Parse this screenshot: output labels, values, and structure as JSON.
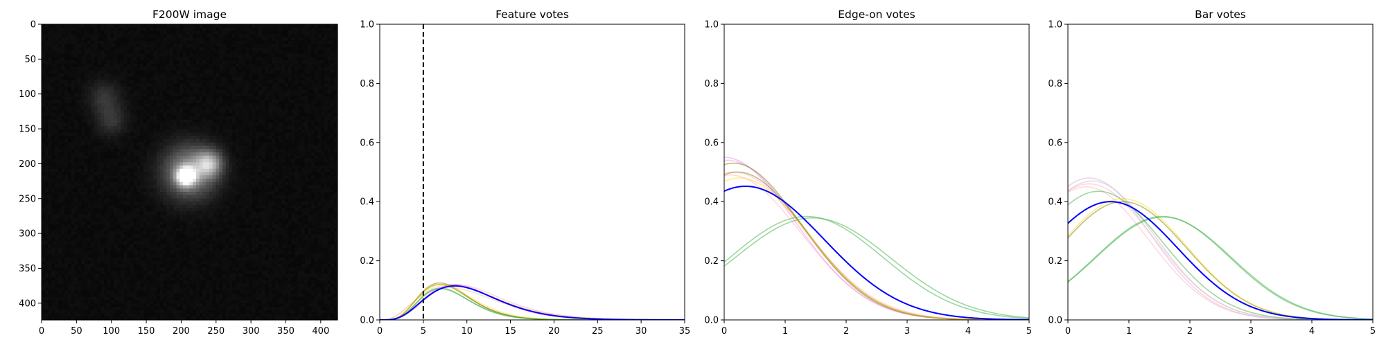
{
  "chart_data": [
    {
      "type": "image",
      "title": "F200W image",
      "xticks": [
        0,
        50,
        100,
        150,
        200,
        250,
        300,
        350,
        400
      ],
      "yticks": [
        0,
        50,
        100,
        150,
        200,
        250,
        300,
        350,
        400
      ],
      "extent": [
        0,
        424
      ],
      "colormap": "gray",
      "sources": [
        {
          "name": "bright compact core",
          "x": 207,
          "y": 218,
          "peak": 1.0,
          "sigma": 9
        },
        {
          "name": "core halo",
          "x": 212,
          "y": 212,
          "peak": 0.55,
          "sigma": 26
        },
        {
          "name": "companion knot",
          "x": 240,
          "y": 200,
          "peak": 0.55,
          "sigma": 13
        },
        {
          "name": "faint upper blob",
          "x": 90,
          "y": 105,
          "peak": 0.17,
          "sigma": 16
        },
        {
          "name": "faint lower blob",
          "x": 100,
          "y": 138,
          "peak": 0.17,
          "sigma": 15
        }
      ]
    },
    {
      "type": "line",
      "title": "Feature votes",
      "xlim": [
        0,
        35
      ],
      "ylim": [
        0,
        1.0
      ],
      "xticks": [
        0,
        5,
        10,
        15,
        20,
        25,
        30,
        35
      ],
      "yticks": [
        0.0,
        0.2,
        0.4,
        0.6,
        0.8,
        1.0
      ],
      "vline": {
        "x": 5,
        "style": "dashed",
        "color": "#000000"
      },
      "curve_model": "x^(a-1) * exp(-x/s)",
      "series": [
        {
          "color": "#0000ff",
          "alpha": 1.0,
          "a": 5.3,
          "s": 2.0,
          "peak": 0.115
        },
        {
          "color": "#ffc0cb",
          "alpha": 0.6,
          "a": 5.0,
          "s": 2.2,
          "peak": 0.12
        },
        {
          "color": "#ffc0cb",
          "alpha": 0.6,
          "a": 5.8,
          "s": 1.8,
          "peak": 0.118
        },
        {
          "color": "#f4c89a",
          "alpha": 0.5,
          "a": 4.2,
          "s": 2.5,
          "peak": 0.12
        },
        {
          "color": "#f4c89a",
          "alpha": 0.5,
          "a": 4.0,
          "s": 2.6,
          "peak": 0.11
        },
        {
          "color": "#ee82ee",
          "alpha": 0.45,
          "a": 5.5,
          "s": 1.9,
          "peak": 0.12
        },
        {
          "color": "#808000",
          "alpha": 0.5,
          "a": 6.5,
          "s": 1.25,
          "peak": 0.125
        },
        {
          "color": "#808000",
          "alpha": 0.5,
          "a": 6.3,
          "s": 1.3,
          "peak": 0.12
        },
        {
          "color": "#ffd700",
          "alpha": 0.45,
          "a": 6.0,
          "s": 1.4,
          "peak": 0.12
        },
        {
          "color": "#3cb043",
          "alpha": 0.5,
          "a": 6.8,
          "s": 1.2,
          "peak": 0.108
        },
        {
          "color": "#3cb043",
          "alpha": 0.5,
          "a": 6.6,
          "s": 1.25,
          "peak": 0.105
        }
      ]
    },
    {
      "type": "line",
      "title": "Edge-on votes",
      "xlim": [
        0,
        5
      ],
      "ylim": [
        0,
        1.0
      ],
      "xticks": [
        0,
        1,
        2,
        3,
        4,
        5
      ],
      "yticks": [
        0.0,
        0.2,
        0.4,
        0.6,
        0.8,
        1.0
      ],
      "curve_model": "A * exp(-((x-mu)^2)/(2*sigma^2))",
      "series": [
        {
          "color": "#0000ff",
          "alpha": 1.0,
          "A": 0.452,
          "mu": 0.35,
          "sigma": 1.28
        },
        {
          "color": "#ffc0cb",
          "alpha": 0.6,
          "A": 0.5,
          "mu": 0.15,
          "sigma": 1.18
        },
        {
          "color": "#ffc0cb",
          "alpha": 0.6,
          "A": 0.49,
          "mu": 0.1,
          "sigma": 1.15
        },
        {
          "color": "#ee82ee",
          "alpha": 0.45,
          "A": 0.55,
          "mu": 0.0,
          "sigma": 1.16
        },
        {
          "color": "#ee82ee",
          "alpha": 0.45,
          "A": 0.54,
          "mu": 0.05,
          "sigma": 1.18
        },
        {
          "color": "#808000",
          "alpha": 0.5,
          "A": 0.53,
          "mu": 0.15,
          "sigma": 1.12
        },
        {
          "color": "#808000",
          "alpha": 0.5,
          "A": 0.5,
          "mu": 0.22,
          "sigma": 1.12
        },
        {
          "color": "#ffd700",
          "alpha": 0.45,
          "A": 0.48,
          "mu": 0.25,
          "sigma": 1.12
        },
        {
          "color": "#3cb043",
          "alpha": 0.5,
          "A": 0.35,
          "mu": 1.35,
          "sigma": 1.25
        },
        {
          "color": "#3cb043",
          "alpha": 0.5,
          "A": 0.345,
          "mu": 1.45,
          "sigma": 1.28
        }
      ]
    },
    {
      "type": "line",
      "title": "Bar votes",
      "xlim": [
        0,
        5
      ],
      "ylim": [
        0,
        1.0
      ],
      "xticks": [
        0,
        1,
        2,
        3,
        4,
        5
      ],
      "yticks": [
        0.0,
        0.2,
        0.4,
        0.6,
        0.8,
        1.0
      ],
      "curve_model": "A * exp(-((x-mu)^2)/(2*sigma^2))",
      "series": [
        {
          "color": "#0000ff",
          "alpha": 1.0,
          "A": 0.4,
          "mu": 0.7,
          "sigma": 1.1
        },
        {
          "color": "#ffc0cb",
          "alpha": 0.6,
          "A": 0.46,
          "mu": 0.35,
          "sigma": 1.05
        },
        {
          "color": "#ffc0cb",
          "alpha": 0.6,
          "A": 0.45,
          "mu": 0.3,
          "sigma": 1.02
        },
        {
          "color": "#d8bfd8",
          "alpha": 0.6,
          "A": 0.48,
          "mu": 0.35,
          "sigma": 1.0
        },
        {
          "color": "#d8bfd8",
          "alpha": 0.6,
          "A": 0.47,
          "mu": 0.4,
          "sigma": 1.02
        },
        {
          "color": "#3cb043",
          "alpha": 0.5,
          "A": 0.435,
          "mu": 0.5,
          "sigma": 1.05
        },
        {
          "color": "#808000",
          "alpha": 0.5,
          "A": 0.4,
          "mu": 0.9,
          "sigma": 1.05
        },
        {
          "color": "#ffd700",
          "alpha": 0.45,
          "A": 0.41,
          "mu": 0.9,
          "sigma": 1.05
        },
        {
          "color": "#3cb043",
          "alpha": 0.5,
          "A": 0.35,
          "mu": 1.55,
          "sigma": 1.1
        },
        {
          "color": "#3cb043",
          "alpha": 0.5,
          "A": 0.348,
          "mu": 1.57,
          "sigma": 1.11
        }
      ]
    }
  ]
}
